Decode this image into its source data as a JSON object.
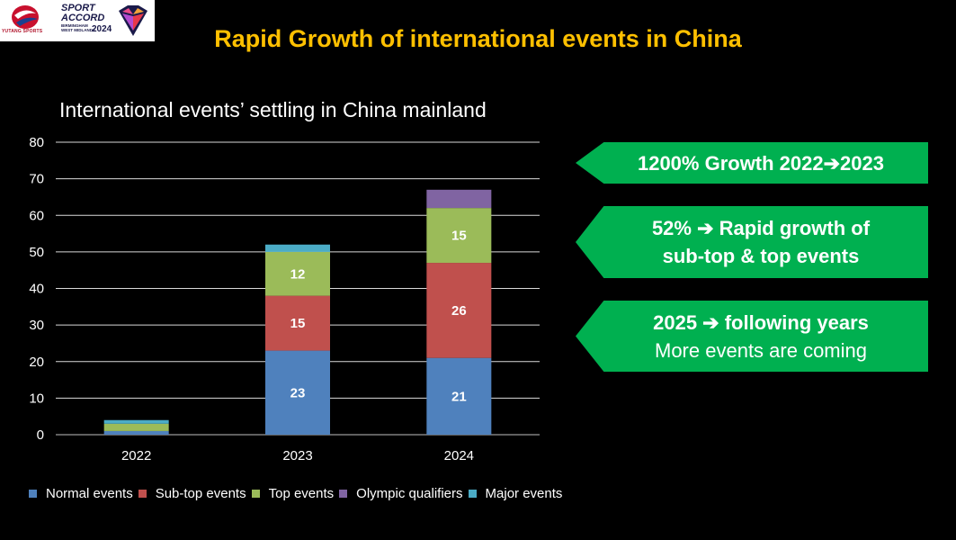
{
  "header": {
    "title": "Rapid Growth of international events in China",
    "logo_yutang_text": "YUTANG SPORTS",
    "logo_sa_line1": "SPORT",
    "logo_sa_line2": "ACCORD",
    "logo_sa_line3": "BIRMINGHAM",
    "logo_sa_line4": "WEST MIDLANDS",
    "logo_sa_year": "2024"
  },
  "callouts": {
    "c1": "1200% Growth 2022➔2023",
    "c2_line1": "52% ➔ Rapid growth of",
    "c2_line2": "sub-top & top events",
    "c3_line1": "2025 ➔ following years",
    "c3_line2": "More events are coming"
  },
  "colors": {
    "Normal events": "#4f81bd",
    "Sub-top events": "#c0504d",
    "Top events": "#9bbb59",
    "Olympic qualifiers": "#8064a2",
    "Major events": "#4bacc6"
  },
  "chart_data": {
    "type": "bar",
    "stacked": true,
    "title": "International events’ settling in China mainland",
    "categories": [
      "2022",
      "2023",
      "2024"
    ],
    "series": [
      {
        "name": "Normal events",
        "values": [
          1,
          23,
          21
        ],
        "labels": [
          "",
          "23",
          "21"
        ]
      },
      {
        "name": "Sub-top events",
        "values": [
          0,
          15,
          26
        ],
        "labels": [
          "",
          "15",
          "26"
        ]
      },
      {
        "name": "Top events",
        "values": [
          2,
          12,
          15
        ],
        "labels": [
          "",
          "12",
          "15"
        ]
      },
      {
        "name": "Olympic qualifiers",
        "values": [
          0,
          0,
          5
        ],
        "labels": [
          "",
          "",
          ""
        ]
      },
      {
        "name": "Major events",
        "values": [
          1,
          2,
          0
        ],
        "labels": [
          "",
          "",
          ""
        ]
      }
    ],
    "yticks": [
      0,
      10,
      20,
      30,
      40,
      50,
      60,
      70,
      80
    ],
    "ylim": [
      0,
      80
    ],
    "grid": true,
    "legend": "bottom"
  }
}
